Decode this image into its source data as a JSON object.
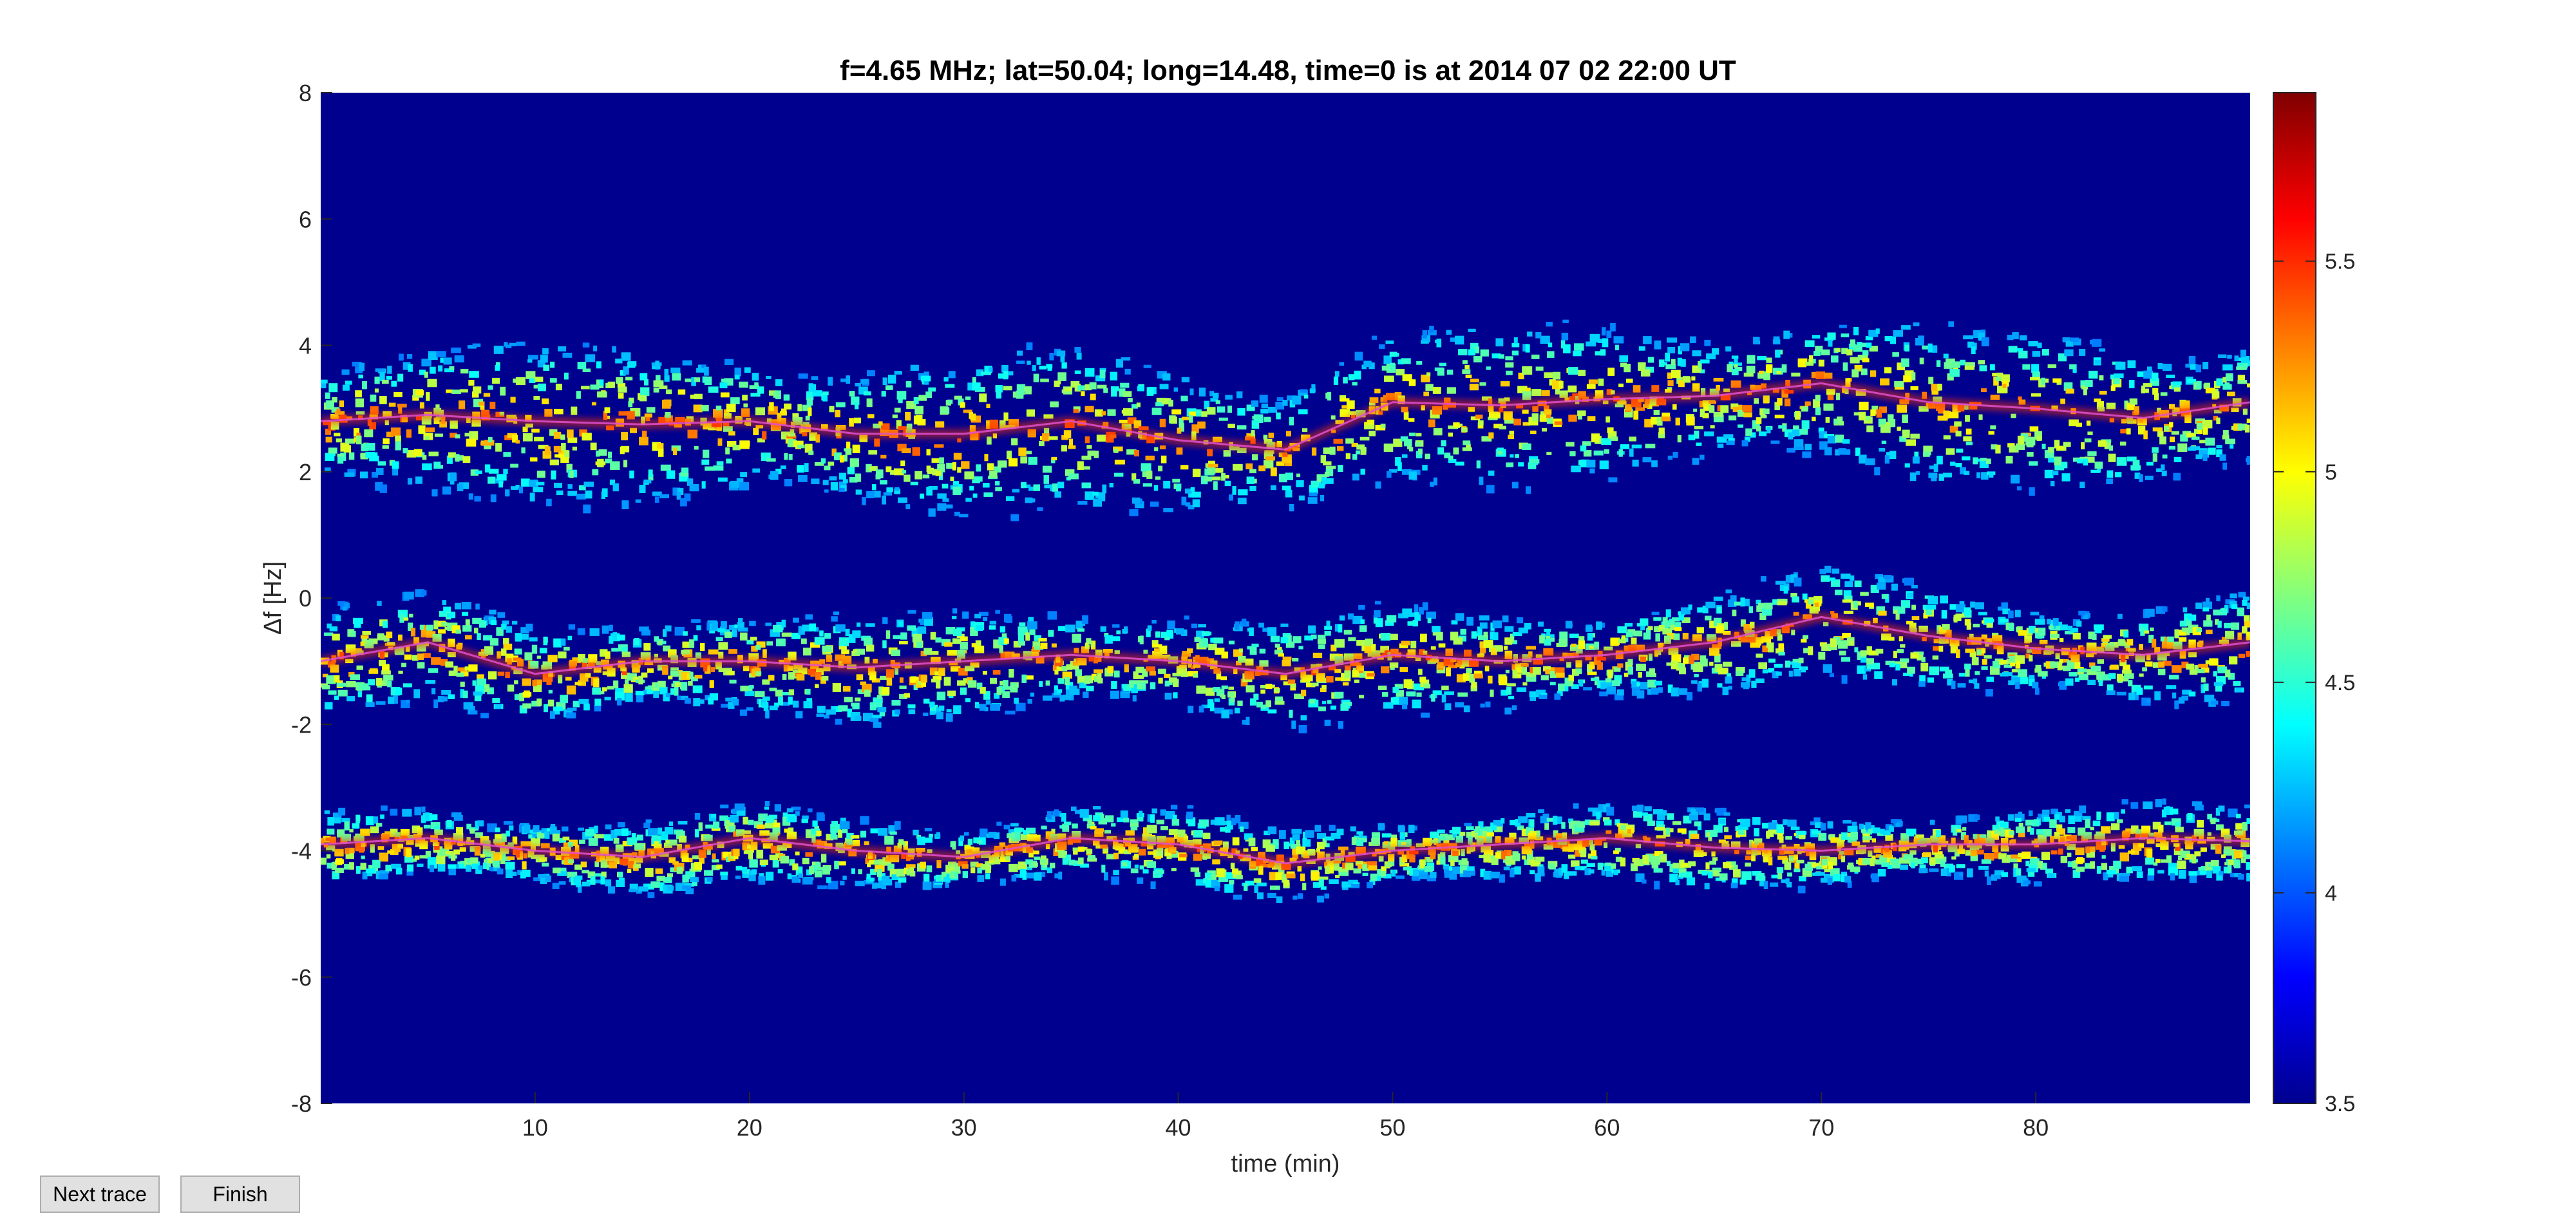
{
  "chart_data": {
    "type": "heatmap",
    "title": "f=4.65 MHz;  lat=50.04; long=14.48, time=0 is at 2014 07 02 22:00 UT",
    "xlabel": "time (min)",
    "ylabel": "Δf [Hz]",
    "xlim": [
      0,
      90
    ],
    "ylim": [
      -8,
      8
    ],
    "xticks": [
      10,
      20,
      30,
      40,
      50,
      60,
      70,
      80
    ],
    "yticks": [
      8,
      6,
      4,
      2,
      0,
      -2,
      -4,
      -6,
      -8
    ],
    "colorbar": {
      "range": [
        3.5,
        5.9
      ],
      "ticks": [
        3.5,
        4,
        4.5,
        5,
        5.5
      ],
      "colormap": "jet"
    },
    "background_color": "#00008f",
    "traces": [
      {
        "x": [
          0,
          5,
          10,
          15,
          20,
          25,
          30,
          35,
          40,
          45,
          50,
          55,
          60,
          65,
          70,
          75,
          80,
          85,
          90
        ],
        "y": [
          2.8,
          2.9,
          2.8,
          2.75,
          2.8,
          2.6,
          2.6,
          2.8,
          2.5,
          2.35,
          3.1,
          3.05,
          3.15,
          3.2,
          3.4,
          3.1,
          3.0,
          2.85,
          3.1
        ]
      },
      {
        "x": [
          0,
          5,
          10,
          15,
          20,
          25,
          30,
          35,
          40,
          45,
          50,
          55,
          60,
          65,
          70,
          75,
          80,
          85,
          90
        ],
        "y": [
          -1.0,
          -0.7,
          -1.2,
          -1.0,
          -1.0,
          -1.1,
          -1.0,
          -0.9,
          -1.0,
          -1.2,
          -0.9,
          -1.0,
          -0.9,
          -0.7,
          -0.3,
          -0.6,
          -0.8,
          -0.9,
          -0.7
        ]
      },
      {
        "x": [
          0,
          5,
          10,
          15,
          20,
          25,
          30,
          35,
          40,
          45,
          50,
          55,
          60,
          65,
          70,
          75,
          80,
          85,
          90
        ],
        "y": [
          -3.9,
          -3.8,
          -4.0,
          -4.1,
          -3.8,
          -4.0,
          -4.1,
          -3.8,
          -3.9,
          -4.2,
          -4.0,
          -3.9,
          -3.8,
          -3.95,
          -4.0,
          -3.9,
          -3.9,
          -3.8,
          -3.85
        ]
      }
    ]
  },
  "buttons": {
    "next_trace": "Next trace",
    "finish": "Finish"
  }
}
